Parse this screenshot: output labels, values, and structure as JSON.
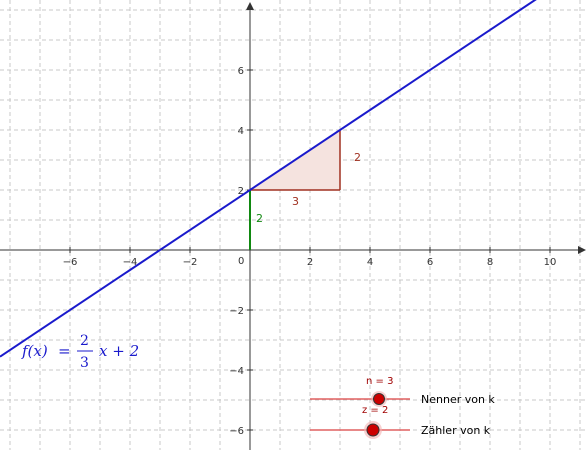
{
  "graph": {
    "x_ticks": [
      "−6",
      "−4",
      "−2",
      "0",
      "2",
      "4",
      "6",
      "8",
      "10"
    ],
    "y_ticks": [
      "6",
      "4",
      "2",
      "−2",
      "−4",
      "−6"
    ],
    "origin_label": "0"
  },
  "function": {
    "name": "f(x)",
    "equals": "=",
    "numerator": "2",
    "denominator": "3",
    "tail": "x + 2",
    "slope": 0.6667,
    "intercept": 2,
    "color": "#1a1acc"
  },
  "slope_triangle": {
    "run_label": "3",
    "rise_label": "2",
    "color": "#a03020",
    "fill": "#f5e3df"
  },
  "intercept_segment": {
    "label": "2",
    "color": "#118811"
  },
  "sliders": [
    {
      "caption": "n = 3",
      "label": "Nenner von k",
      "value": 3
    },
    {
      "caption": "z = 2",
      "label": "Zähler von k",
      "value": 2
    }
  ],
  "colors": {
    "grid": "#c8c8c8",
    "axis": "#333333",
    "slider_track": "#e06060",
    "slider_knob": "#cc0000"
  }
}
